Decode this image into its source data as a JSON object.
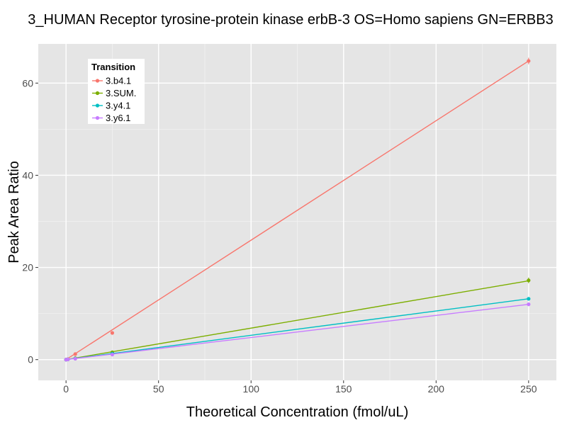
{
  "chart_data": {
    "type": "scatter",
    "title": "3_HUMAN Receptor tyrosine-protein kinase erbB-3 OS=Homo sapiens GN=ERBB3",
    "xlabel": "Theoretical Concentration (fmol/uL)",
    "ylabel": "Peak Area Ratio",
    "xlim": [
      -15,
      265
    ],
    "ylim": [
      -4.5,
      68.5
    ],
    "x_ticks": [
      0,
      50,
      100,
      150,
      200,
      250
    ],
    "y_ticks": [
      0,
      20,
      40,
      60
    ],
    "x_tick_labels": [
      "0",
      "50",
      "100",
      "150",
      "200",
      "250"
    ],
    "y_tick_labels": [
      "0",
      "20",
      "40",
      "60"
    ],
    "grid": true,
    "legend": {
      "title": "Transition",
      "position": "top-left"
    },
    "series": [
      {
        "name": "3.b4.1",
        "color": "#F8766D",
        "x": [
          0,
          1,
          5,
          25,
          250
        ],
        "y": [
          0,
          0.1,
          1.2,
          5.8,
          64.8
        ],
        "fit": [
          0,
          0,
          250,
          64.8
        ],
        "errors": [
          0,
          0,
          0,
          0,
          0.7
        ]
      },
      {
        "name": "3.SUM.",
        "color": "#7CAE00",
        "x": [
          0,
          1,
          5,
          25,
          250
        ],
        "y": [
          0,
          0.05,
          0.3,
          1.6,
          17.2
        ],
        "fit": [
          0,
          0,
          250,
          17.1
        ],
        "errors": [
          0,
          0,
          0,
          0,
          0.6
        ]
      },
      {
        "name": "3.y4.1",
        "color": "#00BFC4",
        "x": [
          0,
          1,
          5,
          25,
          250
        ],
        "y": [
          0,
          0.05,
          0.25,
          1.3,
          13.2
        ],
        "fit": [
          0,
          0,
          250,
          13.2
        ],
        "errors": [
          0,
          0,
          0,
          0,
          0
        ]
      },
      {
        "name": "3.y6.1",
        "color": "#C77CFF",
        "x": [
          0,
          1,
          5,
          25,
          250
        ],
        "y": [
          0,
          0.05,
          0.2,
          1.1,
          12.0
        ],
        "fit": [
          0,
          0,
          250,
          12.0
        ],
        "errors": [
          0,
          0,
          0,
          0,
          0
        ]
      }
    ]
  }
}
